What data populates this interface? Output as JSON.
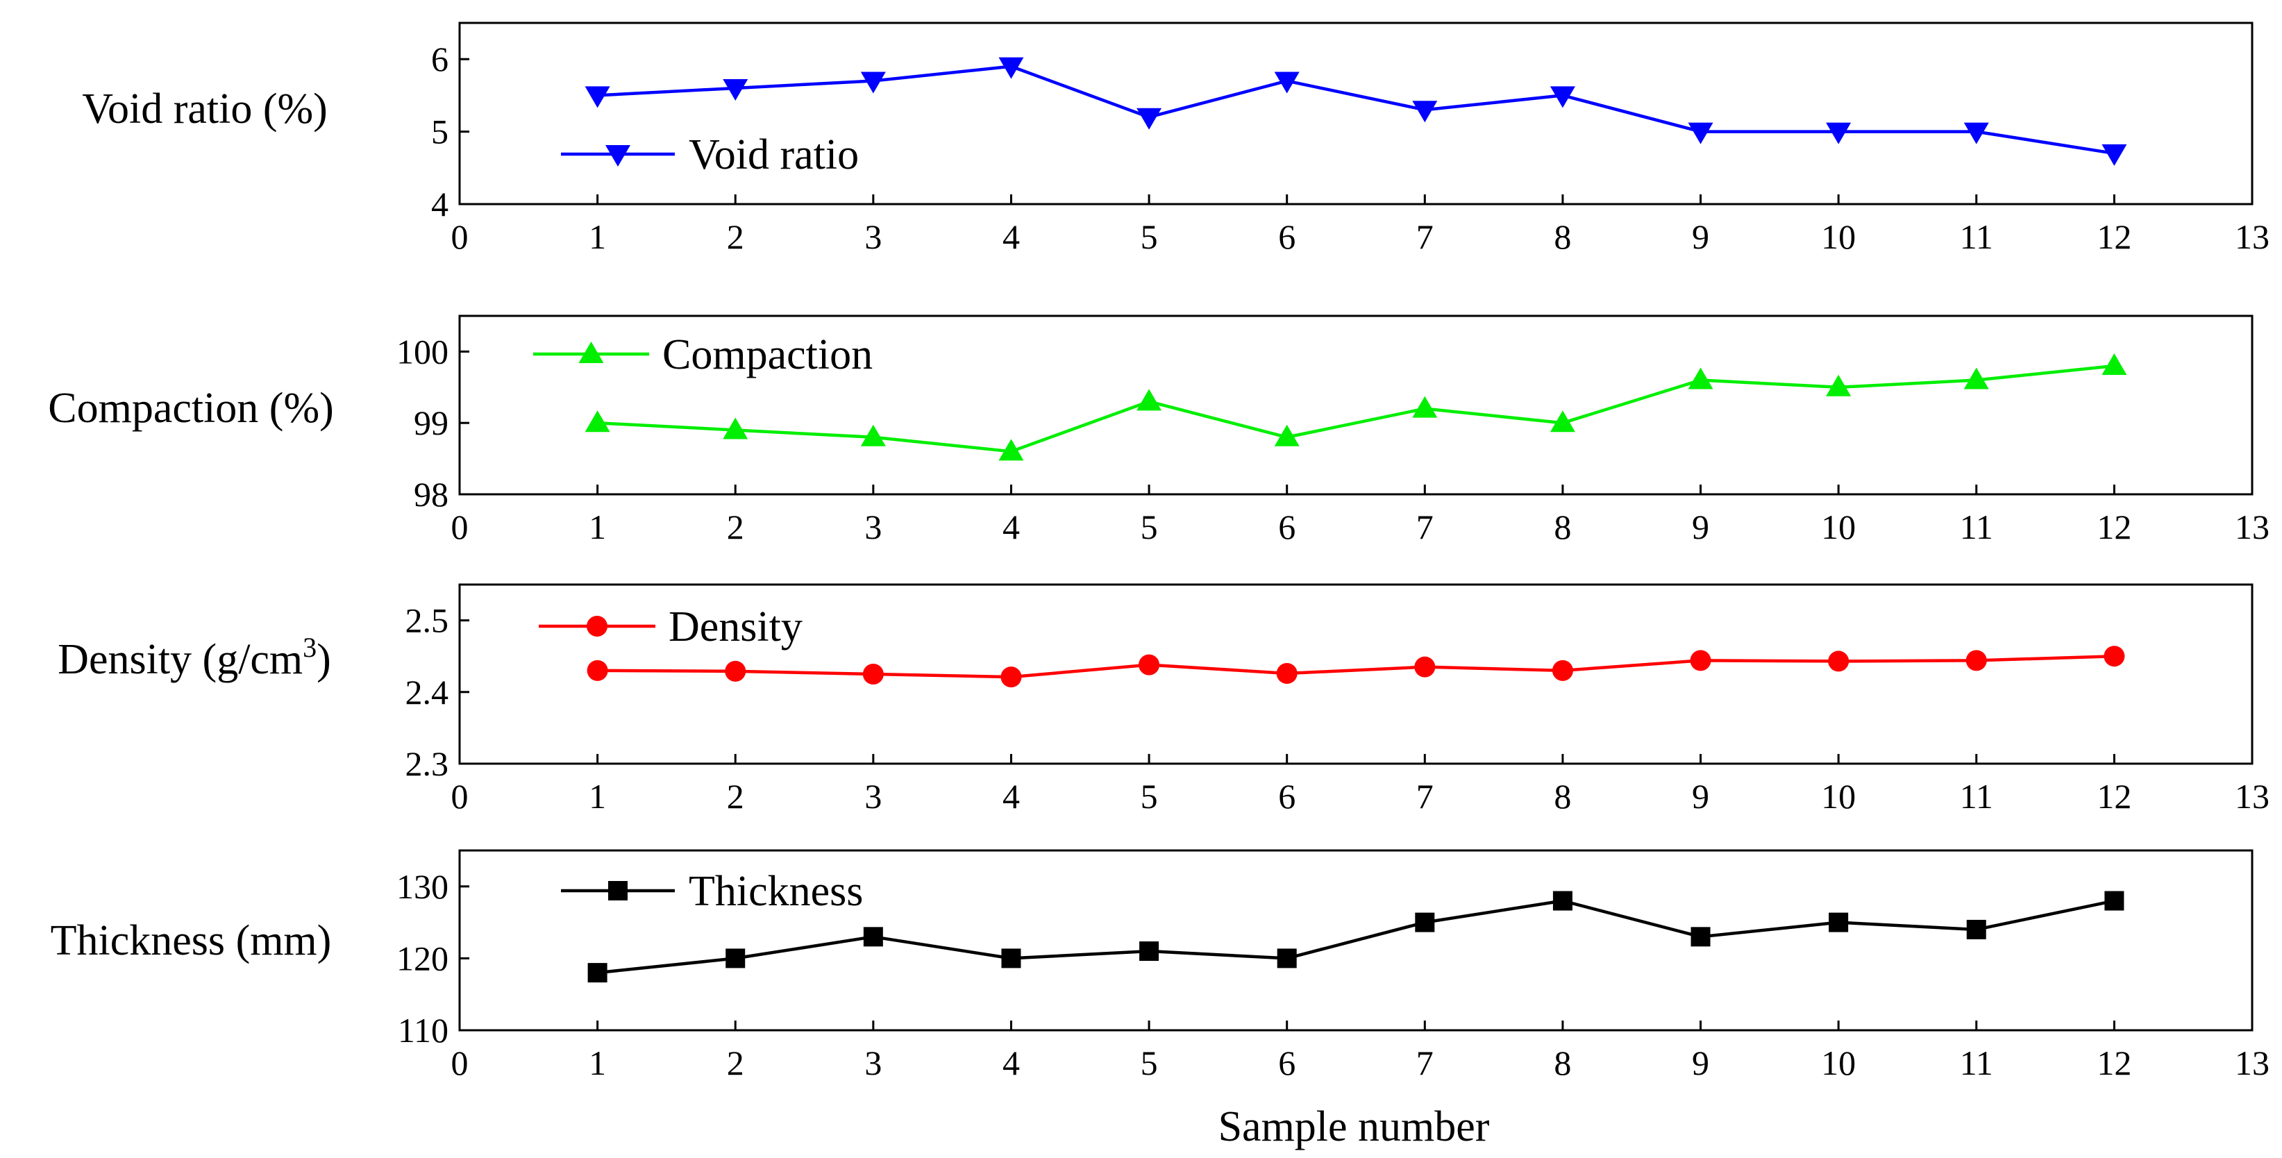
{
  "figure": {
    "xlabel": "Sample number"
  },
  "chart_data": [
    {
      "type": "line",
      "ylabel": "Void ratio (%)",
      "ylabel_main": "Void ratio (%)",
      "ylabel_sup": "",
      "ylabel_tail": "",
      "legend": "Void ratio",
      "color": "#0000ff",
      "marker": "triangle-down",
      "xlim": [
        0,
        13
      ],
      "ylim": [
        4,
        6.5
      ],
      "yticks": [
        4,
        5,
        6
      ],
      "ytick_labels": [
        "4",
        "5",
        "6"
      ],
      "xticks": [
        0,
        1,
        2,
        3,
        4,
        5,
        6,
        7,
        8,
        9,
        10,
        11,
        12,
        13
      ],
      "xtick_labels": [
        "0",
        "1",
        "2",
        "3",
        "4",
        "5",
        "6",
        "7",
        "8",
        "9",
        "10",
        "11",
        "12",
        "13"
      ],
      "x": [
        1,
        2,
        3,
        4,
        5,
        6,
        7,
        8,
        9,
        10,
        11,
        12
      ],
      "values": [
        5.5,
        5.6,
        5.7,
        5.9,
        5.2,
        5.7,
        5.3,
        5.5,
        5.0,
        5.0,
        5.0,
        4.7
      ]
    },
    {
      "type": "line",
      "ylabel": "Compaction (%)",
      "ylabel_main": "Compaction (%)",
      "ylabel_sup": "",
      "ylabel_tail": "",
      "legend": "Compaction",
      "color": "#00ee00",
      "marker": "triangle-up",
      "xlim": [
        0,
        13
      ],
      "ylim": [
        98,
        100.5
      ],
      "yticks": [
        98,
        99,
        100
      ],
      "ytick_labels": [
        "98",
        "99",
        "100"
      ],
      "xticks": [
        0,
        1,
        2,
        3,
        4,
        5,
        6,
        7,
        8,
        9,
        10,
        11,
        12,
        13
      ],
      "xtick_labels": [
        "0",
        "1",
        "2",
        "3",
        "4",
        "5",
        "6",
        "7",
        "8",
        "9",
        "10",
        "11",
        "12",
        "13"
      ],
      "x": [
        1,
        2,
        3,
        4,
        5,
        6,
        7,
        8,
        9,
        10,
        11,
        12
      ],
      "values": [
        99.0,
        98.9,
        98.8,
        98.6,
        99.3,
        98.8,
        99.2,
        99.0,
        99.6,
        99.5,
        99.6,
        99.8
      ]
    },
    {
      "type": "line",
      "ylabel": "Density (g/cm3)",
      "ylabel_main": "Density (g/cm",
      "ylabel_sup": "3",
      "ylabel_tail": ")",
      "legend": "Density",
      "color": "#ff0000",
      "marker": "circle",
      "xlim": [
        0,
        13
      ],
      "ylim": [
        2.3,
        2.55
      ],
      "yticks": [
        2.3,
        2.4,
        2.5
      ],
      "ytick_labels": [
        "2.3",
        "2.4",
        "2.5"
      ],
      "xticks": [
        0,
        1,
        2,
        3,
        4,
        5,
        6,
        7,
        8,
        9,
        10,
        11,
        12,
        13
      ],
      "xtick_labels": [
        "0",
        "1",
        "2",
        "3",
        "4",
        "5",
        "6",
        "7",
        "8",
        "9",
        "10",
        "11",
        "12",
        "13"
      ],
      "x": [
        1,
        2,
        3,
        4,
        5,
        6,
        7,
        8,
        9,
        10,
        11,
        12
      ],
      "values": [
        2.43,
        2.429,
        2.425,
        2.421,
        2.438,
        2.426,
        2.435,
        2.43,
        2.444,
        2.443,
        2.444,
        2.45
      ]
    },
    {
      "type": "line",
      "ylabel": "Thickness (mm)",
      "ylabel_main": "Thickness (mm)",
      "ylabel_sup": "",
      "ylabel_tail": "",
      "legend": "Thickness",
      "color": "#000000",
      "marker": "square",
      "xlim": [
        0,
        13
      ],
      "ylim": [
        110,
        135
      ],
      "yticks": [
        110,
        120,
        130
      ],
      "ytick_labels": [
        "110",
        "120",
        "130"
      ],
      "xticks": [
        0,
        1,
        2,
        3,
        4,
        5,
        6,
        7,
        8,
        9,
        10,
        11,
        12,
        13
      ],
      "xtick_labels": [
        "0",
        "1",
        "2",
        "3",
        "4",
        "5",
        "6",
        "7",
        "8",
        "9",
        "10",
        "11",
        "12",
        "13"
      ],
      "x": [
        1,
        2,
        3,
        4,
        5,
        6,
        7,
        8,
        9,
        10,
        11,
        12
      ],
      "values": [
        118,
        120,
        123,
        120,
        121,
        120,
        125,
        128,
        123,
        125,
        124,
        128
      ]
    }
  ]
}
